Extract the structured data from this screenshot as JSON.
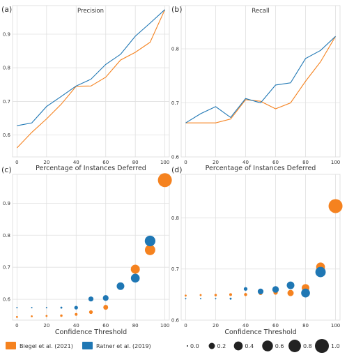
{
  "colors": {
    "biegel": "#f5821f",
    "ratner": "#1f77b4",
    "grid": "#e0e0e0",
    "axis": "#333333"
  },
  "legend": {
    "methods": [
      {
        "label": "Biegel et al. (2021)",
        "color": "#f5821f"
      },
      {
        "label": "Ratner et al. (2019)",
        "color": "#1f77b4"
      }
    ],
    "sizes": [
      "0.0",
      "0.2",
      "0.4",
      "0.6",
      "0.8",
      "1.0"
    ]
  },
  "chart_data": [
    {
      "panel_label": "(a)",
      "type": "line",
      "title": "Precision",
      "xlabel": "Percentage of Instances Deferred",
      "ylabel": "",
      "xlim": [
        -3,
        103
      ],
      "ylim": [
        0.535,
        0.985
      ],
      "xticks": [
        "0",
        "20",
        "40",
        "60",
        "80",
        "100"
      ],
      "yticks": [
        "0.6",
        "0.7",
        "0.8",
        "0.9"
      ],
      "grid": true,
      "x": [
        0,
        10,
        20,
        30,
        40,
        50,
        60,
        70,
        80,
        90,
        100
      ],
      "series": [
        {
          "name": "Biegel et al. (2021)",
          "color": "#f5821f",
          "values": [
            0.562,
            0.608,
            0.648,
            0.692,
            0.745,
            0.746,
            0.772,
            0.823,
            0.846,
            0.876,
            0.973
          ]
        },
        {
          "name": "Ratner et al. (2019)",
          "color": "#1f77b4",
          "values": [
            0.628,
            0.636,
            0.685,
            0.715,
            0.746,
            0.766,
            0.81,
            0.84,
            0.894,
            0.933,
            0.973
          ]
        }
      ]
    },
    {
      "panel_label": "(b)",
      "type": "line",
      "title": "Recall",
      "xlabel": "Percentage of Instances Deferred",
      "ylabel": "",
      "xlim": [
        -3,
        103
      ],
      "ylim": [
        0.6,
        0.88
      ],
      "xticks": [
        "0",
        "20",
        "40",
        "60",
        "80",
        "100"
      ],
      "yticks": [
        "0.6",
        "0.7",
        "0.8"
      ],
      "grid": true,
      "x": [
        0,
        10,
        20,
        30,
        40,
        50,
        60,
        70,
        80,
        90,
        100
      ],
      "series": [
        {
          "name": "Biegel et al. (2021)",
          "color": "#f5821f",
          "values": [
            0.663,
            0.663,
            0.663,
            0.67,
            0.706,
            0.703,
            0.689,
            0.7,
            0.74,
            0.776,
            0.823
          ]
        },
        {
          "name": "Ratner et al. (2019)",
          "color": "#1f77b4",
          "values": [
            0.663,
            0.68,
            0.693,
            0.673,
            0.708,
            0.7,
            0.733,
            0.737,
            0.782,
            0.797,
            0.823
          ]
        }
      ]
    },
    {
      "panel_label": "(c)",
      "type": "scatter",
      "title": "",
      "xlabel": "Confidence Threshold",
      "ylabel": "",
      "xlim": [
        -3,
        103
      ],
      "ylim": [
        0.535,
        0.99
      ],
      "xticks": [
        "0",
        "20",
        "40",
        "60",
        "80",
        "100"
      ],
      "yticks": [
        "0.6",
        "0.7",
        "0.8",
        "0.9"
      ],
      "grid": true,
      "x": [
        0,
        10,
        20,
        30,
        40,
        50,
        60,
        70,
        80,
        90,
        100
      ],
      "series": [
        {
          "name": "Biegel et al. (2021)",
          "color": "#f5821f",
          "values": [
            0.545,
            0.547,
            0.548,
            0.549,
            0.553,
            0.56,
            0.575,
            0.641,
            0.694,
            0.754,
            0.972
          ],
          "sizes": [
            0.02,
            0.02,
            0.02,
            0.03,
            0.04,
            0.07,
            0.12,
            0.27,
            0.42,
            0.55,
            1.0
          ]
        },
        {
          "name": "Ratner et al. (2019)",
          "color": "#1f77b4",
          "values": [
            0.574,
            0.574,
            0.574,
            0.574,
            0.574,
            0.601,
            0.604,
            0.641,
            0.666,
            0.782,
            null
          ],
          "sizes": [
            0.01,
            0.01,
            0.01,
            0.02,
            0.07,
            0.13,
            0.17,
            0.3,
            0.4,
            0.58,
            null
          ]
        }
      ]
    },
    {
      "panel_label": "(d)",
      "type": "scatter",
      "title": "",
      "xlabel": "Confidence Threshold",
      "ylabel": "",
      "xlim": [
        -3,
        103
      ],
      "ylim": [
        0.6,
        0.885
      ],
      "xticks": [
        "0",
        "20",
        "40",
        "60",
        "80",
        "100"
      ],
      "yticks": [
        "0.6",
        "0.7",
        "0.8"
      ],
      "grid": true,
      "x": [
        0,
        10,
        20,
        30,
        40,
        50,
        60,
        70,
        80,
        90,
        100
      ],
      "series": [
        {
          "name": "Biegel et al. (2021)",
          "color": "#f5821f",
          "values": [
            0.648,
            0.649,
            0.649,
            0.65,
            0.65,
            0.653,
            0.654,
            0.653,
            0.663,
            0.704,
            0.823
          ],
          "sizes": [
            0.02,
            0.02,
            0.03,
            0.04,
            0.05,
            0.08,
            0.1,
            0.2,
            0.3,
            0.4,
            1.0
          ]
        },
        {
          "name": "Ratner et al. (2019)",
          "color": "#1f77b4",
          "values": [
            0.642,
            0.642,
            0.642,
            0.642,
            0.661,
            0.656,
            0.66,
            0.668,
            0.653,
            0.694,
            null
          ],
          "sizes": [
            0.01,
            0.01,
            0.01,
            0.02,
            0.07,
            0.17,
            0.22,
            0.3,
            0.4,
            0.55,
            null
          ]
        }
      ]
    }
  ]
}
